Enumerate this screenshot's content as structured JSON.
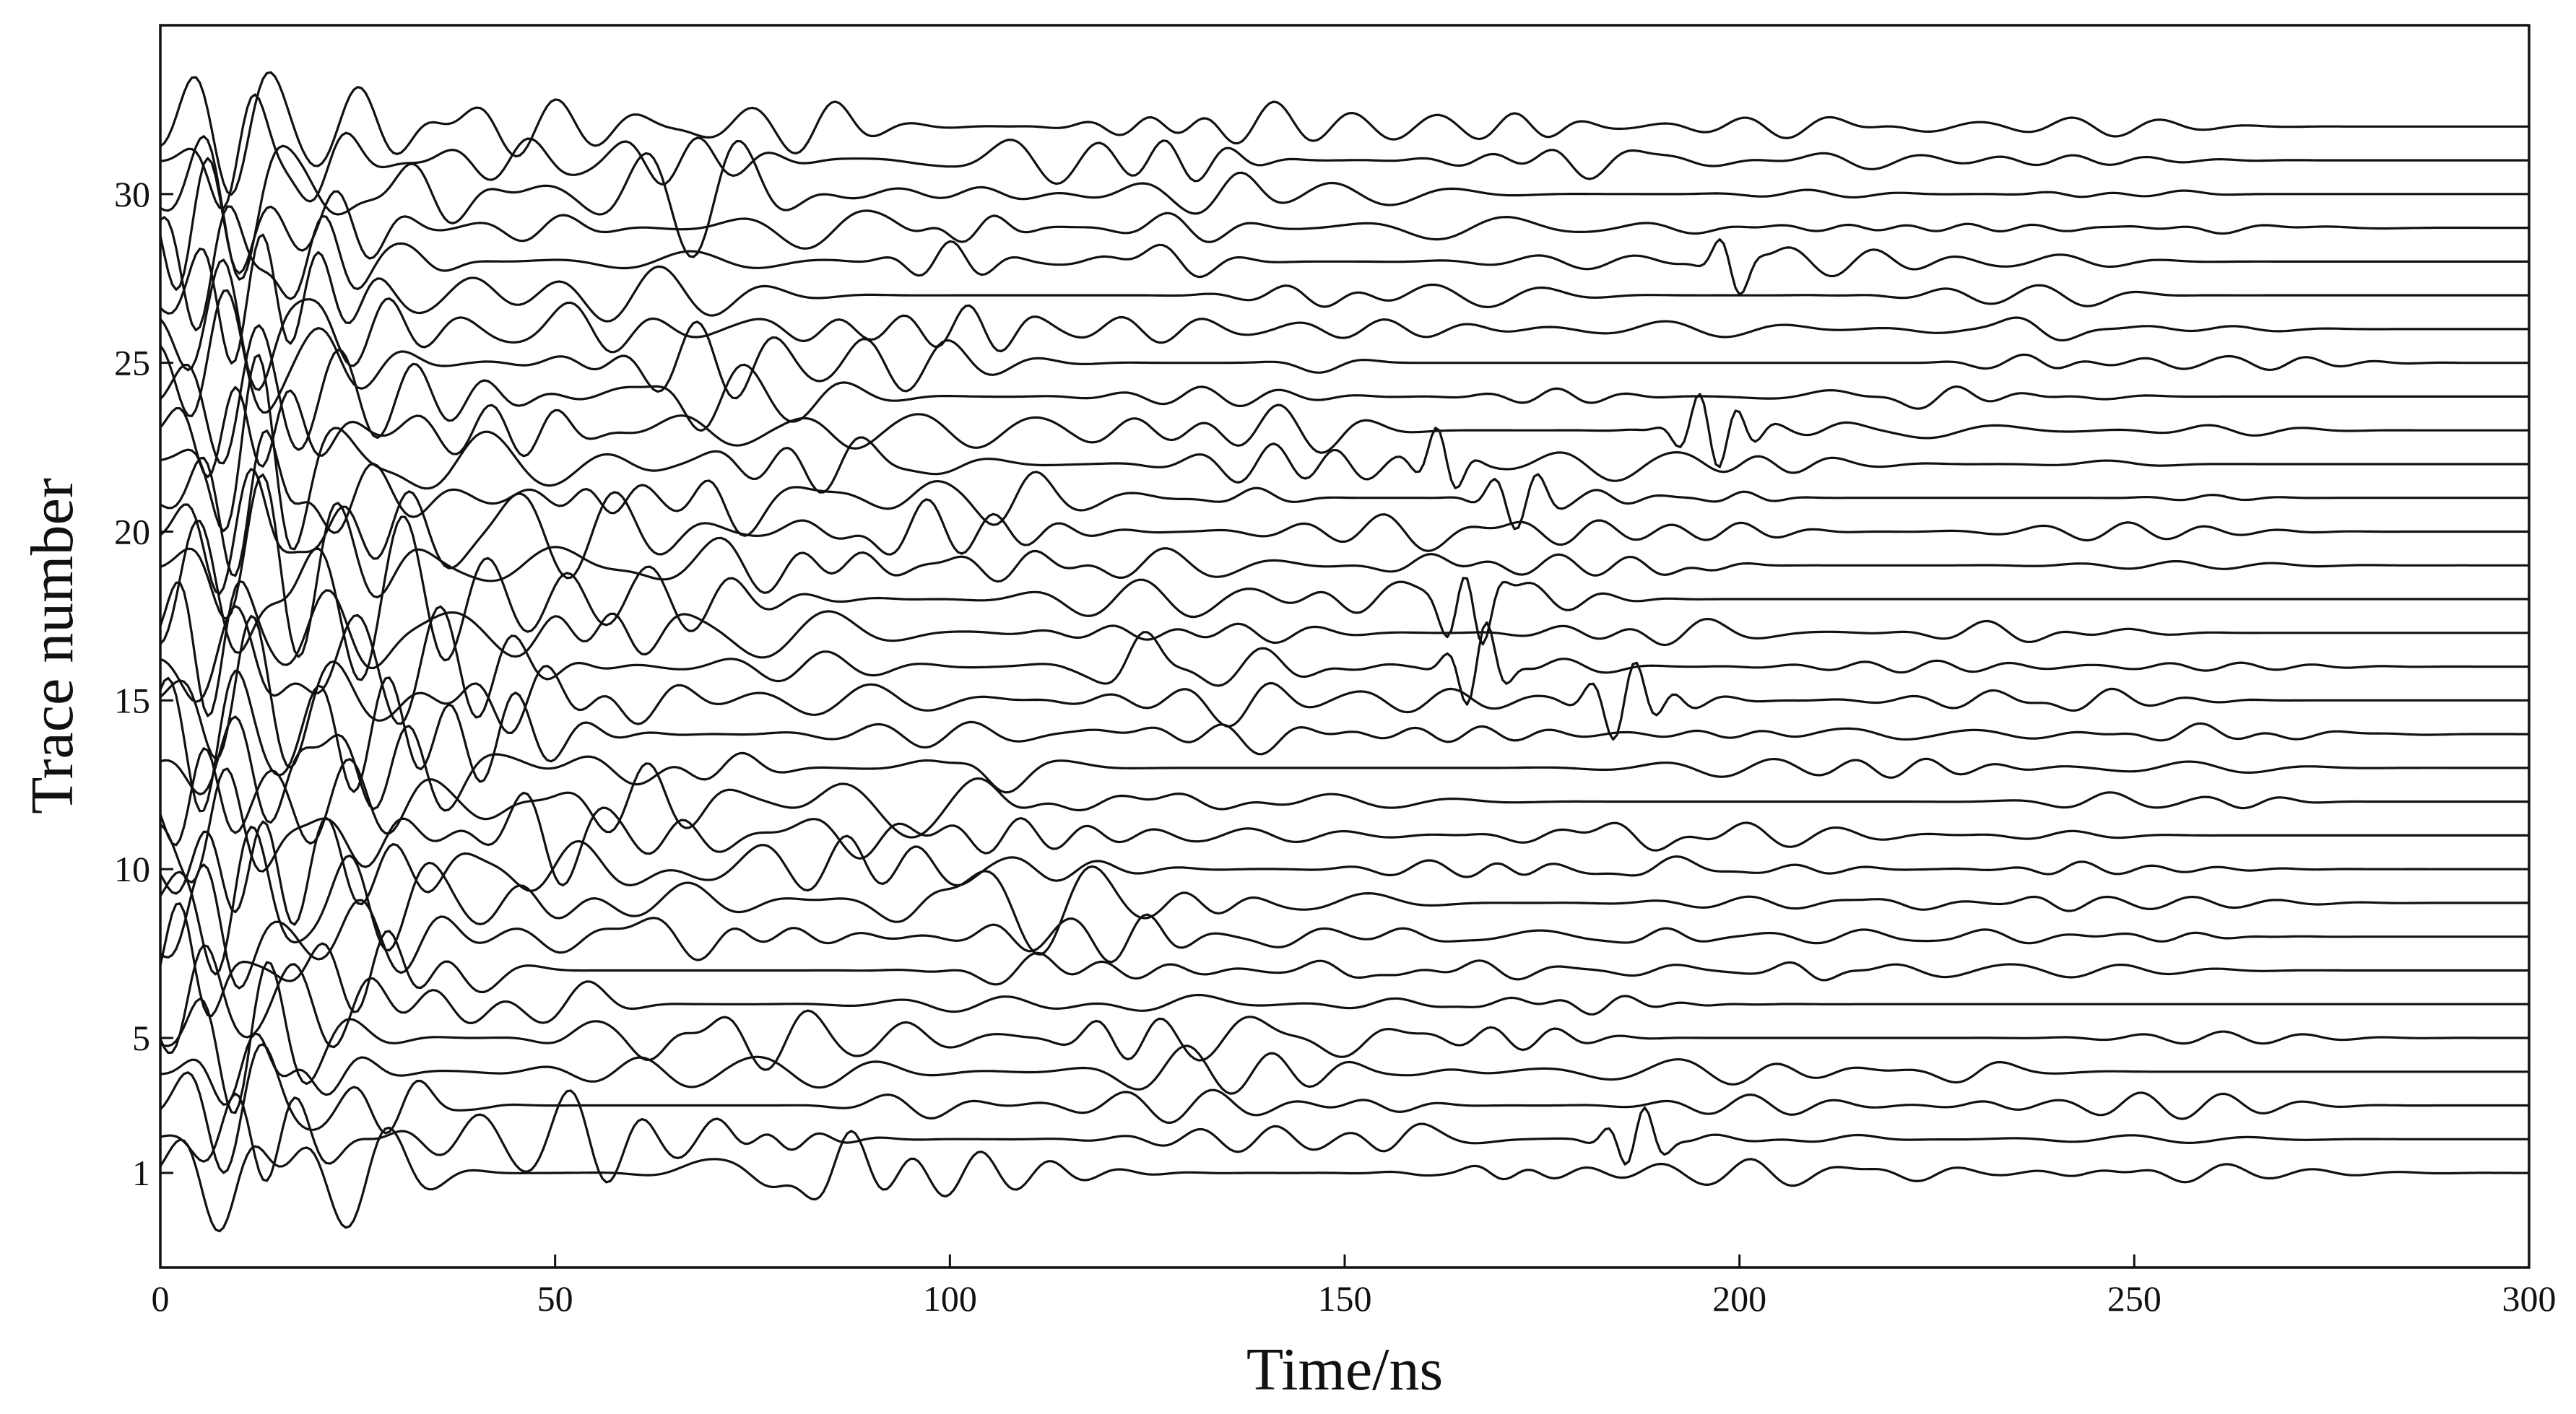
{
  "chart_data": {
    "type": "line",
    "title": "",
    "xlabel": "Time/ns",
    "ylabel": "Trace number",
    "xlim": [
      0,
      300
    ],
    "ylim": [
      -1.8,
      35
    ],
    "x_ticks": [
      0,
      50,
      100,
      150,
      200,
      250,
      300
    ],
    "y_ticks": [
      1,
      5,
      10,
      15,
      20,
      25,
      30
    ],
    "grid": false,
    "legend": "none",
    "line_color": "#111111",
    "trace_count": 32,
    "x_step_ns": 1,
    "x_start_ns": 0,
    "x_end_ns": 300
  }
}
